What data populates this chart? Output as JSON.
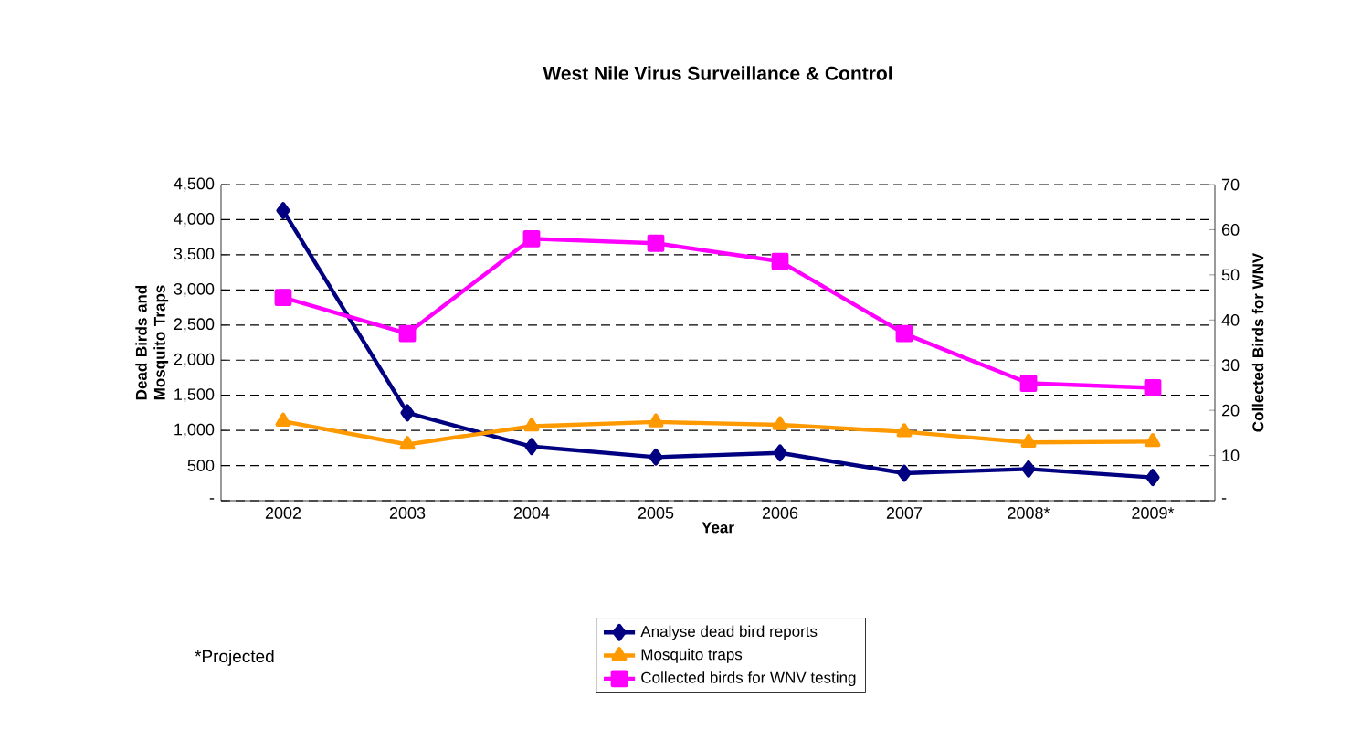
{
  "chart_data": {
    "type": "line",
    "title": "West Nile Virus Surveillance & Control",
    "xlabel": "Year",
    "ylabel": "Dead Birds and Mosquito Traps",
    "y2label": "Collected Birds for WNV",
    "categories": [
      "2002",
      "2003",
      "2004",
      "2005",
      "2006",
      "2007",
      "2008*",
      "2009*"
    ],
    "series": [
      {
        "name": "Analyse dead bird reports",
        "color": "#000080",
        "marker": "diamond",
        "values": [
          4130,
          1250,
          770,
          620,
          680,
          390,
          450,
          330
        ]
      },
      {
        "name": "Mosquito traps",
        "color": "#ff9900",
        "marker": "triangle",
        "values": [
          1130,
          800,
          1060,
          1120,
          1080,
          980,
          830,
          840
        ]
      },
      {
        "name": "Collected birds for WNV testing",
        "color": "#ff00ff",
        "marker": "square",
        "axis": "y2",
        "values": [
          45,
          37,
          58,
          57,
          53,
          37,
          26,
          25
        ]
      }
    ],
    "ylim": [
      0,
      4500
    ],
    "yticks": [
      {
        "value": 0,
        "label": "-"
      },
      500,
      {
        "value": 1000,
        "label": "1,000"
      },
      {
        "value": 1500,
        "label": "1,500"
      },
      {
        "value": 2000,
        "label": "2,000"
      },
      {
        "value": 2500,
        "label": "2,500"
      },
      {
        "value": 3000,
        "label": "3,000"
      },
      {
        "value": 3500,
        "label": "3,500"
      },
      {
        "value": 4000,
        "label": "4,000"
      },
      {
        "value": 4500,
        "label": "4,500"
      }
    ],
    "y2lim": [
      0,
      70
    ],
    "y2ticks": [
      {
        "value": 0,
        "label": "-"
      },
      10,
      20,
      30,
      40,
      50,
      60,
      70
    ],
    "grid": "y",
    "legend": "bottom",
    "line_style": "solid",
    "annotations": [
      "*Projected"
    ]
  }
}
